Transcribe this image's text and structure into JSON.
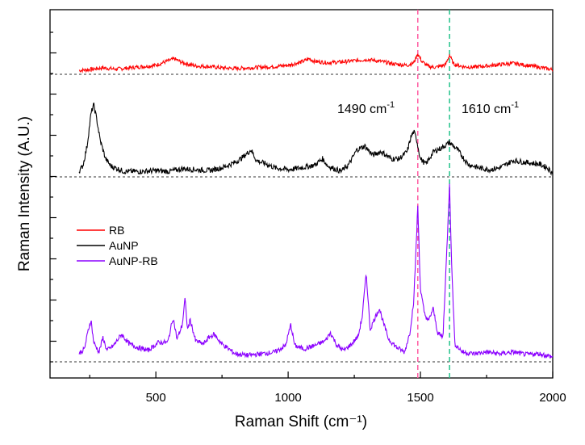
{
  "chart_data": {
    "type": "line",
    "title": "",
    "xlabel": "Raman Shift (cm⁻¹)",
    "ylabel": "Raman Intensity (A.U.)",
    "xlim": [
      100,
      2000
    ],
    "x_ticks": [
      500,
      1000,
      1500,
      2000
    ],
    "x_tick_labels": [
      "500",
      "1000",
      "1500",
      "2000"
    ],
    "y_tick_labels_shown": false,
    "legend": {
      "position": "left",
      "entries": [
        "RB",
        "AuNP",
        "AuNP-RB"
      ]
    },
    "reference_lines": [
      {
        "x": 1490,
        "color": "#ff5aa0",
        "style": "dashed"
      },
      {
        "x": 1610,
        "color": "#22c38a",
        "style": "dashed"
      }
    ],
    "annotations": [
      {
        "base": "1490 cm",
        "sup": "-1",
        "x": 1490
      },
      {
        "base": "1610 cm",
        "sup": "-1",
        "x": 1610
      }
    ],
    "series": [
      {
        "name": "RB",
        "color": "#ff0000",
        "baseline": 0,
        "points": [
          [
            210,
            0.06
          ],
          [
            240,
            0.07
          ],
          [
            300,
            0.1
          ],
          [
            350,
            0.08
          ],
          [
            400,
            0.1
          ],
          [
            450,
            0.12
          ],
          [
            500,
            0.14
          ],
          [
            540,
            0.2
          ],
          [
            570,
            0.24
          ],
          [
            600,
            0.18
          ],
          [
            650,
            0.13
          ],
          [
            700,
            0.12
          ],
          [
            750,
            0.1
          ],
          [
            800,
            0.09
          ],
          [
            850,
            0.1
          ],
          [
            900,
            0.11
          ],
          [
            950,
            0.12
          ],
          [
            1000,
            0.14
          ],
          [
            1050,
            0.19
          ],
          [
            1080,
            0.24
          ],
          [
            1100,
            0.2
          ],
          [
            1150,
            0.18
          ],
          [
            1200,
            0.19
          ],
          [
            1250,
            0.21
          ],
          [
            1300,
            0.23
          ],
          [
            1350,
            0.2
          ],
          [
            1400,
            0.16
          ],
          [
            1450,
            0.14
          ],
          [
            1475,
            0.18
          ],
          [
            1490,
            0.32
          ],
          [
            1505,
            0.2
          ],
          [
            1530,
            0.12
          ],
          [
            1560,
            0.11
          ],
          [
            1595,
            0.15
          ],
          [
            1610,
            0.3
          ],
          [
            1625,
            0.16
          ],
          [
            1660,
            0.12
          ],
          [
            1700,
            0.11
          ],
          [
            1750,
            0.13
          ],
          [
            1800,
            0.15
          ],
          [
            1850,
            0.17
          ],
          [
            1900,
            0.14
          ],
          [
            1950,
            0.11
          ],
          [
            2000,
            0.07
          ]
        ]
      },
      {
        "name": "AuNP",
        "color": "#000000",
        "baseline": 0,
        "points": [
          [
            210,
            0.06
          ],
          [
            225,
            0.13
          ],
          [
            240,
            0.34
          ],
          [
            255,
            0.7
          ],
          [
            265,
            0.8
          ],
          [
            275,
            0.66
          ],
          [
            290,
            0.4
          ],
          [
            310,
            0.2
          ],
          [
            330,
            0.12
          ],
          [
            380,
            0.06
          ],
          [
            450,
            0.06
          ],
          [
            500,
            0.07
          ],
          [
            550,
            0.06
          ],
          [
            600,
            0.09
          ],
          [
            650,
            0.08
          ],
          [
            700,
            0.07
          ],
          [
            750,
            0.1
          ],
          [
            800,
            0.16
          ],
          [
            830,
            0.22
          ],
          [
            860,
            0.3
          ],
          [
            880,
            0.18
          ],
          [
            920,
            0.14
          ],
          [
            950,
            0.1
          ],
          [
            1000,
            0.08
          ],
          [
            1050,
            0.1
          ],
          [
            1100,
            0.13
          ],
          [
            1130,
            0.2
          ],
          [
            1150,
            0.12
          ],
          [
            1200,
            0.06
          ],
          [
            1230,
            0.14
          ],
          [
            1260,
            0.3
          ],
          [
            1290,
            0.34
          ],
          [
            1320,
            0.24
          ],
          [
            1350,
            0.28
          ],
          [
            1390,
            0.2
          ],
          [
            1420,
            0.2
          ],
          [
            1450,
            0.28
          ],
          [
            1465,
            0.45
          ],
          [
            1475,
            0.5
          ],
          [
            1485,
            0.42
          ],
          [
            1500,
            0.2
          ],
          [
            1520,
            0.14
          ],
          [
            1550,
            0.28
          ],
          [
            1580,
            0.32
          ],
          [
            1610,
            0.38
          ],
          [
            1640,
            0.3
          ],
          [
            1680,
            0.14
          ],
          [
            1720,
            0.1
          ],
          [
            1760,
            0.08
          ],
          [
            1800,
            0.1
          ],
          [
            1850,
            0.18
          ],
          [
            1900,
            0.16
          ],
          [
            1950,
            0.14
          ],
          [
            1980,
            0.1
          ],
          [
            2000,
            0.04
          ]
        ]
      },
      {
        "name": "AuNP-RB",
        "color": "#8b00ff",
        "baseline": 0,
        "points": [
          [
            210,
            0.1
          ],
          [
            230,
            0.16
          ],
          [
            245,
            0.4
          ],
          [
            255,
            0.52
          ],
          [
            265,
            0.24
          ],
          [
            285,
            0.12
          ],
          [
            300,
            0.3
          ],
          [
            315,
            0.14
          ],
          [
            340,
            0.2
          ],
          [
            370,
            0.34
          ],
          [
            400,
            0.22
          ],
          [
            430,
            0.18
          ],
          [
            470,
            0.14
          ],
          [
            510,
            0.24
          ],
          [
            545,
            0.24
          ],
          [
            565,
            0.55
          ],
          [
            580,
            0.28
          ],
          [
            600,
            0.46
          ],
          [
            610,
            0.78
          ],
          [
            620,
            0.4
          ],
          [
            630,
            0.52
          ],
          [
            650,
            0.26
          ],
          [
            680,
            0.22
          ],
          [
            700,
            0.3
          ],
          [
            720,
            0.34
          ],
          [
            750,
            0.22
          ],
          [
            800,
            0.1
          ],
          [
            850,
            0.08
          ],
          [
            900,
            0.1
          ],
          [
            950,
            0.12
          ],
          [
            990,
            0.2
          ],
          [
            1010,
            0.46
          ],
          [
            1025,
            0.2
          ],
          [
            1060,
            0.16
          ],
          [
            1100,
            0.2
          ],
          [
            1140,
            0.26
          ],
          [
            1160,
            0.36
          ],
          [
            1185,
            0.2
          ],
          [
            1210,
            0.14
          ],
          [
            1240,
            0.22
          ],
          [
            1265,
            0.32
          ],
          [
            1280,
            0.56
          ],
          [
            1295,
            1.1
          ],
          [
            1310,
            0.4
          ],
          [
            1330,
            0.56
          ],
          [
            1345,
            0.66
          ],
          [
            1360,
            0.48
          ],
          [
            1380,
            0.28
          ],
          [
            1410,
            0.18
          ],
          [
            1440,
            0.12
          ],
          [
            1460,
            0.36
          ],
          [
            1475,
            0.76
          ],
          [
            1490,
            1.93
          ],
          [
            1500,
            0.9
          ],
          [
            1515,
            0.6
          ],
          [
            1530,
            0.5
          ],
          [
            1548,
            0.66
          ],
          [
            1565,
            0.36
          ],
          [
            1585,
            0.3
          ],
          [
            1600,
            1.4
          ],
          [
            1610,
            2.21
          ],
          [
            1618,
            1.2
          ],
          [
            1630,
            0.22
          ],
          [
            1660,
            0.12
          ],
          [
            1700,
            0.1
          ],
          [
            1750,
            0.12
          ],
          [
            1800,
            0.1
          ],
          [
            1850,
            0.12
          ],
          [
            1900,
            0.09
          ],
          [
            1950,
            0.1
          ],
          [
            2000,
            0.06
          ]
        ]
      }
    ]
  }
}
